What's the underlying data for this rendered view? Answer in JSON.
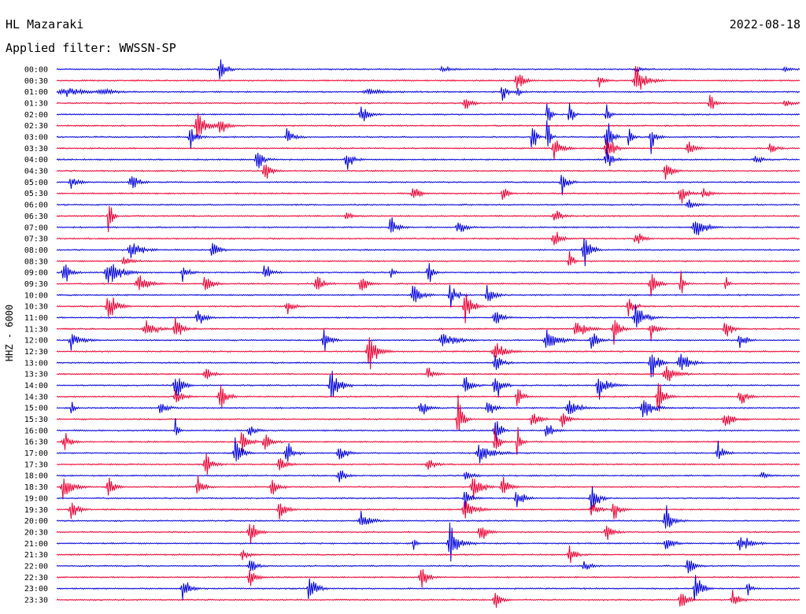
{
  "header": {
    "station": "HL Mazaraki",
    "date": "2022-08-18",
    "filter": "Applied filter: WWSSN-SP"
  },
  "chart_data": {
    "type": "line",
    "title": "",
    "ylabel": "HHZ - 6000",
    "xlabel": "",
    "colors": [
      "#0000dd",
      "#ee0033"
    ],
    "grid": false,
    "legend": "none",
    "rows": [
      {
        "label": "00:00",
        "events": [
          [
            0.22,
            0.45,
            1.1
          ],
          [
            0.52,
            0.15,
            1.4
          ],
          [
            0.78,
            0.1,
            1.2
          ],
          [
            0.98,
            0.12,
            1.0
          ]
        ]
      },
      {
        "label": "00:30",
        "events": [
          [
            0.62,
            0.45,
            1.0
          ],
          [
            0.73,
            0.25,
            0.8
          ],
          [
            0.78,
            0.55,
            1.6
          ]
        ]
      },
      {
        "label": "01:00",
        "events": [
          [
            0.01,
            0.2,
            3.0
          ],
          [
            0.06,
            0.15,
            2.0
          ],
          [
            0.6,
            0.5,
            0.8
          ],
          [
            0.62,
            0.35,
            0.5
          ],
          [
            0.42,
            0.12,
            3.0
          ]
        ]
      },
      {
        "label": "01:30",
        "events": [
          [
            0.55,
            0.35,
            1.0
          ],
          [
            0.88,
            0.35,
            1.0
          ],
          [
            0.98,
            0.15,
            1.0
          ]
        ]
      },
      {
        "label": "02:00",
        "events": [
          [
            0.41,
            0.5,
            1.2
          ],
          [
            0.66,
            0.9,
            0.5
          ],
          [
            0.69,
            0.9,
            0.5
          ],
          [
            0.74,
            0.5,
            0.5
          ]
        ]
      },
      {
        "label": "02:30",
        "events": [
          [
            0.19,
            0.85,
            1.2
          ],
          [
            0.22,
            0.4,
            1.0
          ]
        ]
      },
      {
        "label": "03:00",
        "events": [
          [
            0.18,
            0.45,
            1.0
          ],
          [
            0.31,
            0.4,
            1.0
          ],
          [
            0.64,
            0.95,
            0.6
          ],
          [
            0.66,
            0.95,
            0.5
          ],
          [
            0.74,
            0.9,
            0.8
          ],
          [
            0.77,
            0.7,
            0.5
          ],
          [
            0.8,
            0.6,
            0.8
          ]
        ]
      },
      {
        "label": "03:30",
        "events": [
          [
            0.67,
            0.55,
            1.2
          ],
          [
            0.74,
            0.7,
            1.0
          ],
          [
            0.85,
            0.35,
            1.0
          ],
          [
            0.96,
            0.25,
            1.0
          ]
        ]
      },
      {
        "label": "04:00",
        "events": [
          [
            0.27,
            0.5,
            1.0
          ],
          [
            0.39,
            0.45,
            1.0
          ],
          [
            0.74,
            0.45,
            1.0
          ],
          [
            0.94,
            0.25,
            1.0
          ]
        ]
      },
      {
        "label": "04:30",
        "events": [
          [
            0.28,
            0.45,
            1.0
          ],
          [
            0.82,
            0.45,
            1.0
          ]
        ]
      },
      {
        "label": "05:00",
        "events": [
          [
            0.02,
            0.3,
            1.0
          ],
          [
            0.1,
            0.45,
            1.0
          ],
          [
            0.68,
            0.5,
            1.0
          ]
        ]
      },
      {
        "label": "05:30",
        "events": [
          [
            0.48,
            0.35,
            1.0
          ],
          [
            0.6,
            0.5,
            0.7
          ],
          [
            0.84,
            0.45,
            1.0
          ],
          [
            0.87,
            0.25,
            1.0
          ]
        ]
      },
      {
        "label": "06:00",
        "events": [
          [
            0.85,
            0.3,
            1.0
          ]
        ]
      },
      {
        "label": "06:30",
        "events": [
          [
            0.07,
            0.9,
            0.6
          ],
          [
            0.67,
            0.35,
            1.0
          ],
          [
            0.39,
            0.15,
            1.0
          ]
        ]
      },
      {
        "label": "07:00",
        "events": [
          [
            0.45,
            0.45,
            1.0
          ],
          [
            0.54,
            0.4,
            1.0
          ],
          [
            0.86,
            0.5,
            1.5
          ]
        ]
      },
      {
        "label": "07:30",
        "events": [
          [
            0.67,
            0.35,
            1.2
          ],
          [
            0.78,
            0.35,
            1.0
          ]
        ]
      },
      {
        "label": "08:00",
        "events": [
          [
            0.1,
            0.45,
            1.5
          ],
          [
            0.21,
            0.45,
            1.0
          ],
          [
            0.71,
            0.85,
            1.0
          ]
        ]
      },
      {
        "label": "08:30",
        "events": [
          [
            0.09,
            0.35,
            1.0
          ],
          [
            0.69,
            0.7,
            0.5
          ]
        ]
      },
      {
        "label": "09:00",
        "events": [
          [
            0.01,
            0.6,
            1.0
          ],
          [
            0.07,
            0.55,
            2.0
          ],
          [
            0.17,
            0.45,
            1.0
          ],
          [
            0.28,
            0.45,
            1.0
          ],
          [
            0.5,
            0.55,
            0.7
          ],
          [
            0.45,
            0.3,
            0.5
          ]
        ]
      },
      {
        "label": "09:30",
        "events": [
          [
            0.11,
            0.4,
            1.5
          ],
          [
            0.2,
            0.5,
            1.0
          ],
          [
            0.35,
            0.45,
            1.0
          ],
          [
            0.41,
            0.5,
            1.0
          ],
          [
            0.8,
            0.55,
            1.0
          ],
          [
            0.84,
            0.65,
            0.5
          ],
          [
            0.9,
            0.4,
            0.4
          ]
        ]
      },
      {
        "label": "10:00",
        "events": [
          [
            0.48,
            0.55,
            1.2
          ],
          [
            0.53,
            0.6,
            1.0
          ],
          [
            0.58,
            0.45,
            1.0
          ]
        ]
      },
      {
        "label": "10:30",
        "events": [
          [
            0.07,
            0.7,
            1.3
          ],
          [
            0.31,
            0.35,
            1.0
          ],
          [
            0.55,
            0.9,
            1.0
          ],
          [
            0.77,
            0.4,
            1.0
          ]
        ]
      },
      {
        "label": "11:00",
        "events": [
          [
            0.19,
            0.45,
            1.0
          ],
          [
            0.59,
            0.45,
            1.0
          ],
          [
            0.78,
            0.55,
            1.5
          ]
        ]
      },
      {
        "label": "11:30",
        "events": [
          [
            0.12,
            0.45,
            1.5
          ],
          [
            0.16,
            0.5,
            1.2
          ],
          [
            0.7,
            0.45,
            1.5
          ],
          [
            0.75,
            0.7,
            1.0
          ],
          [
            0.8,
            0.35,
            1.0
          ],
          [
            0.9,
            0.55,
            1.0
          ]
        ]
      },
      {
        "label": "12:00",
        "events": [
          [
            0.02,
            0.35,
            1.5
          ],
          [
            0.36,
            0.55,
            1.0
          ],
          [
            0.52,
            0.35,
            2.0
          ],
          [
            0.66,
            0.55,
            1.5
          ],
          [
            0.72,
            0.5,
            1.0
          ],
          [
            0.92,
            0.4,
            1.0
          ]
        ]
      },
      {
        "label": "12:30",
        "events": [
          [
            0.42,
            0.75,
            1.4
          ],
          [
            0.59,
            0.45,
            1.5
          ]
        ]
      },
      {
        "label": "13:00",
        "events": [
          [
            0.59,
            0.5,
            1.0
          ],
          [
            0.8,
            0.85,
            1.0
          ],
          [
            0.84,
            0.45,
            1.5
          ]
        ]
      },
      {
        "label": "13:30",
        "events": [
          [
            0.2,
            0.35,
            1.0
          ],
          [
            0.5,
            0.3,
            1.0
          ],
          [
            0.82,
            0.45,
            1.5
          ]
        ]
      },
      {
        "label": "14:00",
        "events": [
          [
            0.16,
            0.75,
            1.0
          ],
          [
            0.37,
            0.85,
            1.2
          ],
          [
            0.55,
            0.45,
            1.0
          ],
          [
            0.59,
            0.75,
            1.0
          ],
          [
            0.73,
            0.5,
            1.5
          ]
        ]
      },
      {
        "label": "14:30",
        "events": [
          [
            0.16,
            0.35,
            1.0
          ],
          [
            0.22,
            0.6,
            1.0
          ],
          [
            0.62,
            0.7,
            0.7
          ],
          [
            0.81,
            0.6,
            1.0
          ],
          [
            0.92,
            0.45,
            1.0
          ]
        ]
      },
      {
        "label": "15:00",
        "events": [
          [
            0.02,
            0.45,
            0.5
          ],
          [
            0.14,
            0.35,
            1.0
          ],
          [
            0.49,
            0.45,
            1.0
          ],
          [
            0.58,
            0.4,
            1.0
          ],
          [
            0.69,
            0.45,
            1.5
          ],
          [
            0.79,
            0.5,
            1.5
          ]
        ]
      },
      {
        "label": "15:30",
        "events": [
          [
            0.54,
            0.9,
            0.8
          ],
          [
            0.64,
            0.5,
            1.0
          ],
          [
            0.68,
            0.35,
            1.0
          ],
          [
            0.9,
            0.3,
            1.5
          ]
        ]
      },
      {
        "label": "16:00",
        "events": [
          [
            0.16,
            0.5,
            0.5
          ],
          [
            0.26,
            0.25,
            1.0
          ],
          [
            0.59,
            0.8,
            0.8
          ],
          [
            0.66,
            0.35,
            1.0
          ]
        ]
      },
      {
        "label": "16:30",
        "events": [
          [
            0.01,
            0.45,
            1.0
          ],
          [
            0.25,
            0.55,
            1.0
          ],
          [
            0.28,
            0.5,
            1.0
          ],
          [
            0.59,
            0.9,
            0.6
          ],
          [
            0.62,
            0.95,
            0.5
          ]
        ]
      },
      {
        "label": "17:00",
        "events": [
          [
            0.24,
            0.75,
            1.0
          ],
          [
            0.31,
            0.55,
            1.0
          ],
          [
            0.38,
            0.45,
            1.0
          ],
          [
            0.57,
            0.45,
            2.0
          ],
          [
            0.89,
            0.45,
            1.0
          ]
        ]
      },
      {
        "label": "17:30",
        "events": [
          [
            0.2,
            0.55,
            1.0
          ],
          [
            0.3,
            0.45,
            1.0
          ],
          [
            0.5,
            0.3,
            1.0
          ]
        ]
      },
      {
        "label": "18:00",
        "events": [
          [
            0.38,
            0.35,
            1.0
          ],
          [
            0.55,
            0.3,
            1.0
          ],
          [
            0.95,
            0.15,
            1.0
          ]
        ]
      },
      {
        "label": "18:30",
        "events": [
          [
            0.01,
            0.55,
            1.5
          ],
          [
            0.07,
            0.5,
            1.0
          ],
          [
            0.19,
            0.45,
            1.0
          ],
          [
            0.29,
            0.45,
            1.0
          ],
          [
            0.56,
            0.75,
            1.2
          ],
          [
            0.6,
            0.5,
            1.0
          ]
        ]
      },
      {
        "label": "19:00",
        "events": [
          [
            0.55,
            0.35,
            1.0
          ],
          [
            0.62,
            0.45,
            1.2
          ],
          [
            0.72,
            0.7,
            1.0
          ]
        ]
      },
      {
        "label": "19:30",
        "events": [
          [
            0.02,
            0.6,
            1.0
          ],
          [
            0.3,
            0.45,
            1.0
          ],
          [
            0.55,
            0.45,
            1.5
          ],
          [
            0.72,
            0.35,
            1.0
          ],
          [
            0.75,
            0.45,
            1.0
          ]
        ]
      },
      {
        "label": "20:00",
        "events": [
          [
            0.41,
            0.35,
            1.5
          ],
          [
            0.82,
            0.6,
            1.2
          ]
        ]
      },
      {
        "label": "20:30",
        "events": [
          [
            0.26,
            0.55,
            1.0
          ],
          [
            0.57,
            0.45,
            1.0
          ],
          [
            0.74,
            0.45,
            1.0
          ]
        ]
      },
      {
        "label": "21:00",
        "events": [
          [
            0.53,
            0.75,
            1.5
          ],
          [
            0.48,
            0.4,
            0.4
          ],
          [
            0.82,
            0.35,
            1.0
          ],
          [
            0.92,
            0.45,
            1.5
          ]
        ]
      },
      {
        "label": "21:30",
        "events": [
          [
            0.25,
            0.25,
            1.0
          ],
          [
            0.69,
            0.45,
            1.0
          ]
        ]
      },
      {
        "label": "22:00",
        "events": [
          [
            0.26,
            0.35,
            1.0
          ],
          [
            0.71,
            0.25,
            1.0
          ],
          [
            0.85,
            0.45,
            1.0
          ]
        ]
      },
      {
        "label": "22:30",
        "events": [
          [
            0.26,
            0.45,
            1.0
          ],
          [
            0.49,
            0.55,
            1.0
          ]
        ]
      },
      {
        "label": "23:00",
        "events": [
          [
            0.17,
            0.45,
            1.0
          ],
          [
            0.34,
            0.7,
            1.0
          ],
          [
            0.86,
            0.9,
            1.0
          ],
          [
            0.93,
            0.45,
            0.5
          ]
        ]
      },
      {
        "label": "23:30",
        "events": [
          [
            0.59,
            0.45,
            1.0
          ],
          [
            0.84,
            0.5,
            1.0
          ],
          [
            0.91,
            0.45,
            1.0
          ]
        ]
      }
    ]
  }
}
